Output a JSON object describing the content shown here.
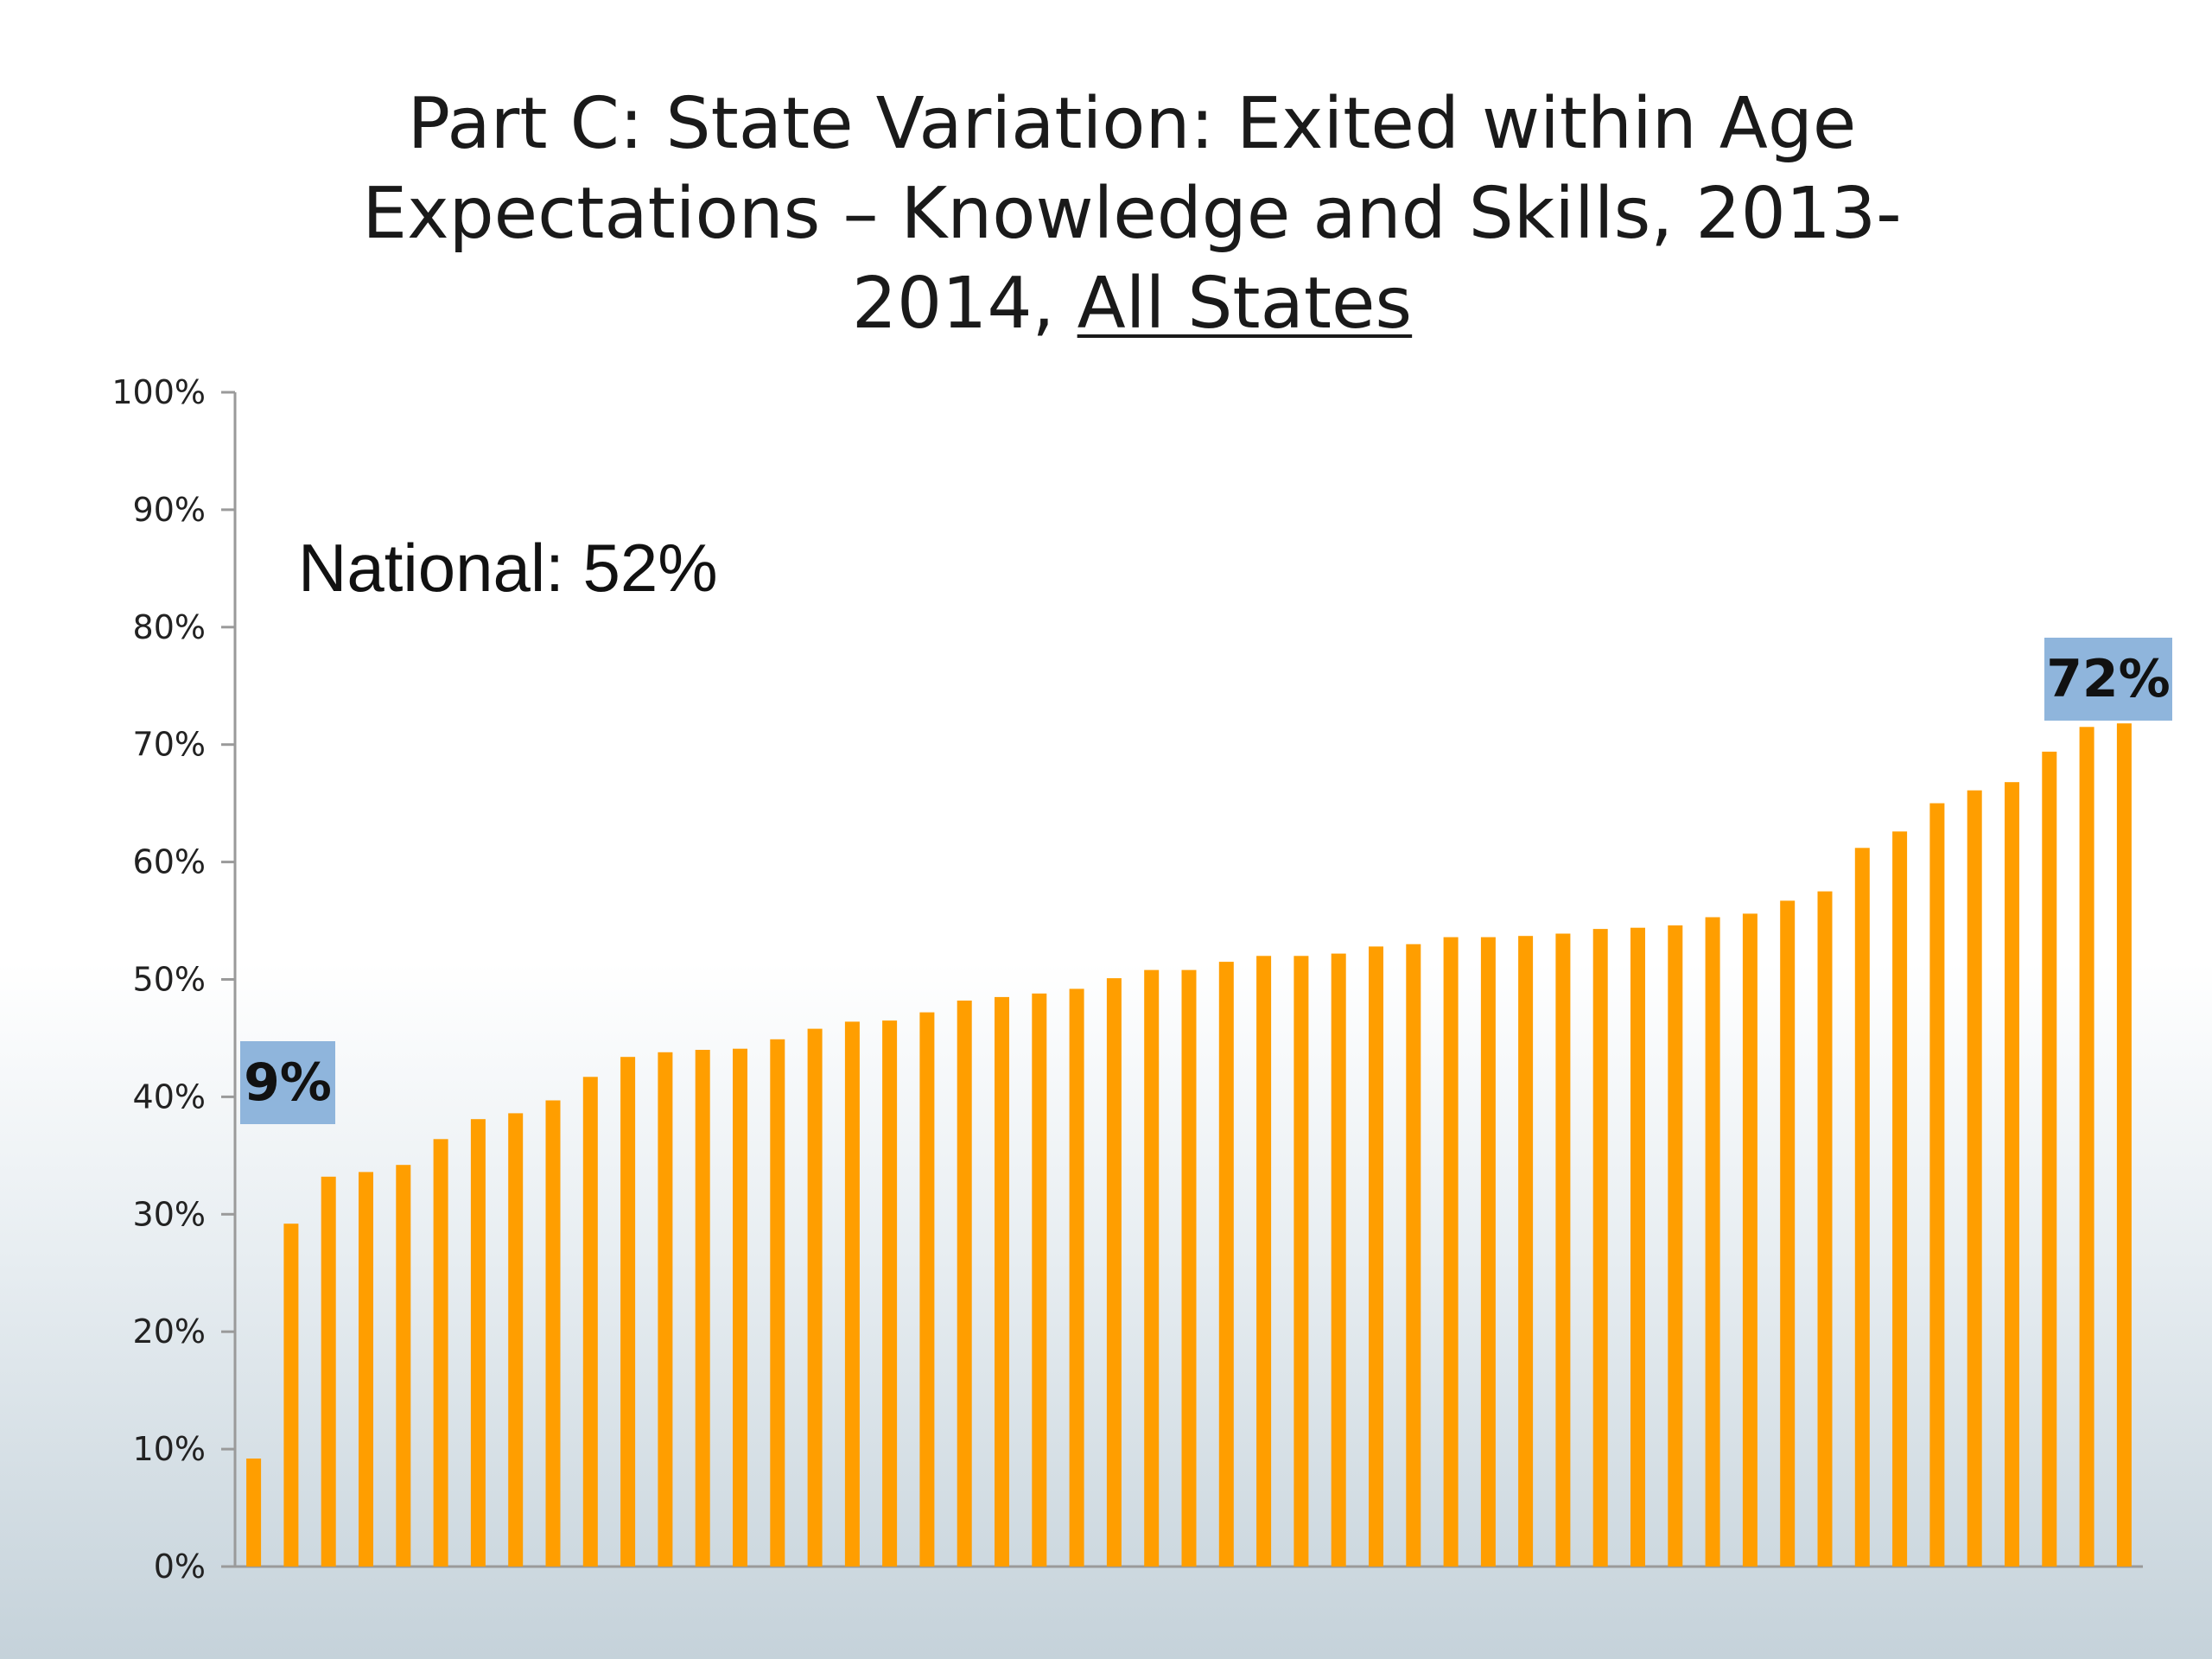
{
  "title": {
    "line1": "Part C: State Variation: Exited within Age",
    "line2": "Expectations – Knowledge and Skills, 2013-",
    "line3_prefix": "2014, ",
    "line3_underlined": "All States"
  },
  "national_label": "National: 52%",
  "callouts": {
    "min": "9%",
    "max": "72%"
  },
  "colors": {
    "bar": "#ff9e00",
    "callout_bg": "#8fb5dc",
    "axis": "#9a9a9a"
  },
  "chart_data": {
    "type": "bar",
    "title": "Part C: State Variation: Exited within Age Expectations – Knowledge and Skills, 2013-2014, All States",
    "xlabel": "",
    "ylabel": "",
    "ylim": [
      0,
      100
    ],
    "y_ticks": [
      "0%",
      "10%",
      "20%",
      "30%",
      "40%",
      "50%",
      "60%",
      "70%",
      "80%",
      "90%",
      "100%"
    ],
    "grid": false,
    "values": [
      9.2,
      29.2,
      33.2,
      33.6,
      34.2,
      36.4,
      38.1,
      38.6,
      39.7,
      41.7,
      43.4,
      43.8,
      44.0,
      44.1,
      44.9,
      45.8,
      46.4,
      46.5,
      47.2,
      48.2,
      48.5,
      48.8,
      49.2,
      50.1,
      50.8,
      50.8,
      51.5,
      52.0,
      52.0,
      52.2,
      52.8,
      53.0,
      53.6,
      53.6,
      53.7,
      53.9,
      54.3,
      54.4,
      54.6,
      55.3,
      55.6,
      56.7,
      57.5,
      61.2,
      62.6,
      65.0,
      66.1,
      66.8,
      69.4,
      71.5,
      71.8
    ],
    "annotations": [
      "9%",
      "72%",
      "National: 52%"
    ]
  }
}
